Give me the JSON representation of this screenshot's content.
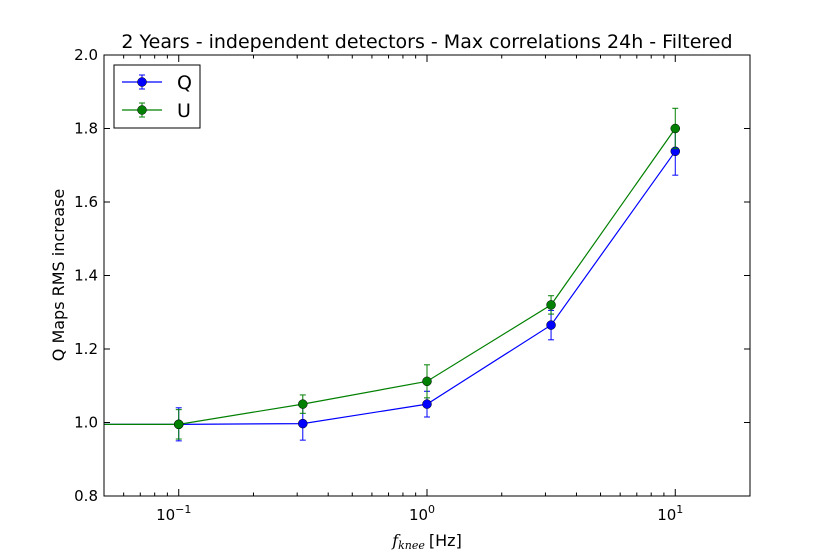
{
  "chart_data": {
    "type": "line",
    "title": "2 Years - independent detectors - Max correlations 24h - Filtered",
    "xlabel_main": "f",
    "xlabel_sub": "knee",
    "xlabel_unit": "[Hz]",
    "ylabel": "Q Maps RMS increase",
    "xscale": "log",
    "xlim": [
      0.05,
      20
    ],
    "ylim": [
      0.8,
      2.0
    ],
    "x": [
      0.01,
      0.1,
      0.316,
      1.0,
      3.16,
      10.0
    ],
    "yticks": [
      0.8,
      1.0,
      1.2,
      1.4,
      1.6,
      1.8,
      2.0
    ],
    "ytick_labels": [
      "0.8",
      "1.0",
      "1.2",
      "1.4",
      "1.6",
      "1.8",
      "2.0"
    ],
    "xticks": [
      {
        "value": 0.1,
        "base": "10",
        "exp": "−1"
      },
      {
        "value": 1,
        "base": "10",
        "exp": "0"
      },
      {
        "value": 10,
        "base": "10",
        "exp": "1"
      }
    ],
    "legend_position": "top-left",
    "series": [
      {
        "name": "Q",
        "color": "#0000ff",
        "values": [
          0.995,
          0.995,
          0.997,
          1.05,
          1.265,
          1.738
        ],
        "errors": [
          0.0,
          0.045,
          0.045,
          0.035,
          0.04,
          0.065
        ]
      },
      {
        "name": "U",
        "color": "#008000",
        "values": [
          0.995,
          0.995,
          1.05,
          1.112,
          1.32,
          1.8
        ],
        "errors": [
          0.0,
          0.04,
          0.025,
          0.045,
          0.025,
          0.055
        ]
      }
    ]
  }
}
